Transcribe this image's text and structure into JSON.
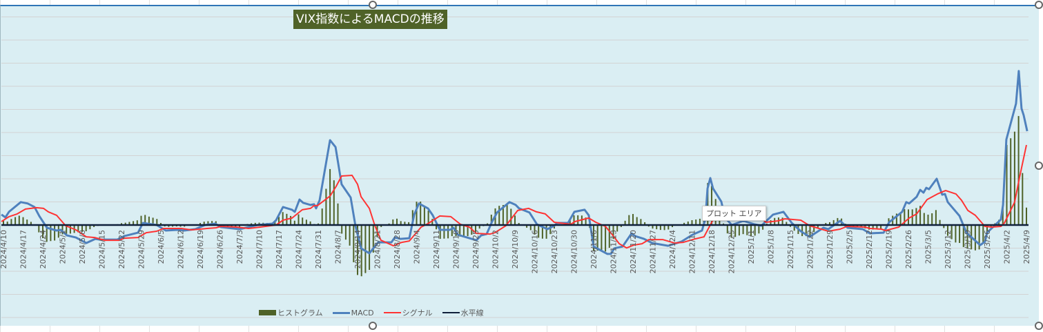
{
  "colors": {
    "histogram": "#4F6228",
    "macd": "#4F81BD",
    "signal": "#FF3333",
    "zero": "#0F1F3A",
    "bg": "#DAEEF3",
    "grid": "#D3D3D3",
    "title_bg": "#4F6228"
  },
  "tooltip": "プロット エリア",
  "chart_data": {
    "type": "bar+line",
    "title": "VIX指数によるMACDの推移",
    "xlabel": "",
    "ylabel": "",
    "x_unit": "weeks since 2024/4/10",
    "y_unit": "gridline units (no y-axis labels shown)",
    "ylim": [
      -4,
      9.5
    ],
    "grid": true,
    "legend_position": "bottom",
    "categories": [
      "2024/4/10",
      "2024/4/17",
      "2024/4/24",
      "2024/5/1",
      "2024/5/8",
      "2024/5/15",
      "2024/5/22",
      "2024/5/29",
      "2024/6/5",
      "2024/6/12",
      "2024/6/19",
      "2024/6/26",
      "2024/7/3",
      "2024/7/10",
      "2024/7/17",
      "2024/7/24",
      "2024/7/31",
      "2024/8/7",
      "2024/8/14",
      "2024/8/21",
      "2024/8/28",
      "2024/9/4",
      "2024/9/11",
      "2024/9/18",
      "2024/9/25",
      "2024/10/2",
      "2024/10/9",
      "2024/10/16",
      "2024/10/23",
      "2024/10/30",
      "2024/11/6",
      "2024/11/13",
      "2024/11/20",
      "2024/11/27",
      "2024/12/4",
      "2024/12/11",
      "2024/12/18",
      "2024/12/25",
      "2025/1/1",
      "2025/1/8",
      "2025/1/15",
      "2025/1/22",
      "2025/1/29",
      "2025/2/5",
      "2025/2/12",
      "2025/2/19",
      "2025/2/26",
      "2025/3/5",
      "2025/3/12",
      "2025/3/19",
      "2025/3/26",
      "2025/4/2",
      "2025/4/9"
    ],
    "legend": [
      "ヒストグラム",
      "MACD",
      "シグナル",
      "水平線"
    ],
    "series": [
      {
        "name": "MACD",
        "points": [
          [
            -0.1,
            0.45
          ],
          [
            0.1,
            0.33
          ],
          [
            0.28,
            0.57
          ],
          [
            0.88,
            0.99
          ],
          [
            1.23,
            0.93
          ],
          [
            1.58,
            0.78
          ],
          [
            1.82,
            0.39
          ],
          [
            2.21,
            -0.12
          ],
          [
            2.7,
            -0.24
          ],
          [
            2.91,
            -0.21
          ],
          [
            3.23,
            -0.45
          ],
          [
            3.68,
            -0.54
          ],
          [
            4.21,
            -0.78
          ],
          [
            4.67,
            -0.6
          ],
          [
            4.91,
            -0.63
          ],
          [
            5.79,
            -0.63
          ],
          [
            6.14,
            -0.48
          ],
          [
            6.84,
            -0.33
          ],
          [
            7.09,
            0.09
          ],
          [
            7.79,
            0
          ],
          [
            8.25,
            -0.24
          ],
          [
            8.84,
            -0.21
          ],
          [
            9.19,
            -0.24
          ],
          [
            9.75,
            -0.18
          ],
          [
            10.25,
            0
          ],
          [
            10.77,
            0.06
          ],
          [
            11.05,
            -0.09
          ],
          [
            12.0,
            -0.18
          ],
          [
            12.91,
            0
          ],
          [
            13.68,
            0.06
          ],
          [
            13.86,
            0.21
          ],
          [
            14.21,
            0.78
          ],
          [
            14.67,
            0.66
          ],
          [
            14.81,
            0.57
          ],
          [
            15.05,
            1.1
          ],
          [
            15.23,
            0.96
          ],
          [
            15.61,
            0.87
          ],
          [
            15.79,
            0.9
          ],
          [
            15.89,
            0.72
          ],
          [
            16.07,
            1.07
          ],
          [
            16.6,
            3.67
          ],
          [
            16.88,
            3.37
          ],
          [
            17.19,
            1.76
          ],
          [
            17.65,
            1.19
          ],
          [
            17.89,
            -0.03
          ],
          [
            18.18,
            -1.01
          ],
          [
            18.6,
            -1.22
          ],
          [
            19.05,
            -0.75
          ],
          [
            19.72,
            -0.75
          ],
          [
            19.89,
            -0.54
          ],
          [
            20.18,
            -0.6
          ],
          [
            20.63,
            -0.57
          ],
          [
            20.88,
            0.45
          ],
          [
            21.12,
            0.93
          ],
          [
            21.58,
            0.72
          ],
          [
            21.82,
            0.42
          ],
          [
            22.18,
            -0.21
          ],
          [
            22.7,
            -0.21
          ],
          [
            22.88,
            -0.12
          ],
          [
            23.09,
            -0.42
          ],
          [
            24.04,
            -0.66
          ],
          [
            24.28,
            -0.45
          ],
          [
            24.56,
            -0.39
          ],
          [
            24.84,
            0.15
          ],
          [
            25.09,
            0.54
          ],
          [
            25.72,
            0.99
          ],
          [
            26.04,
            0.87
          ],
          [
            26.21,
            0.72
          ],
          [
            26.74,
            0.54
          ],
          [
            27.12,
            0.03
          ],
          [
            27.65,
            -0.18
          ],
          [
            28.0,
            -0.03
          ],
          [
            28.14,
            0.09
          ],
          [
            28.7,
            0.09
          ],
          [
            29.02,
            0.57
          ],
          [
            29.54,
            0.66
          ],
          [
            29.75,
            0.42
          ],
          [
            30.0,
            -0.93
          ],
          [
            30.7,
            -1.25
          ],
          [
            30.88,
            -1.25
          ],
          [
            31.05,
            -1.01
          ],
          [
            31.47,
            -0.93
          ],
          [
            31.93,
            -0.36
          ],
          [
            32.11,
            -0.48
          ],
          [
            32.56,
            -0.6
          ],
          [
            32.98,
            -0.78
          ],
          [
            33.79,
            -0.9
          ],
          [
            34.46,
            -0.72
          ],
          [
            35.02,
            -0.42
          ],
          [
            35.51,
            -0.24
          ],
          [
            35.68,
            0.27
          ],
          [
            35.79,
            1.58
          ],
          [
            35.93,
            2.03
          ],
          [
            36.07,
            1.58
          ],
          [
            36.49,
            1.01
          ],
          [
            36.67,
            0.33
          ],
          [
            37.02,
            0
          ],
          [
            37.61,
            0.18
          ],
          [
            38.18,
            0.03
          ],
          [
            38.53,
            -0.03
          ],
          [
            39.12,
            0.45
          ],
          [
            39.65,
            0.57
          ],
          [
            40.07,
            0.09
          ],
          [
            40.53,
            -0.27
          ],
          [
            40.98,
            -0.51
          ],
          [
            41.68,
            -0.12
          ],
          [
            41.93,
            -0.18
          ],
          [
            42.53,
            0.18
          ],
          [
            42.91,
            -0.12
          ],
          [
            43.68,
            -0.18
          ],
          [
            44.04,
            -0.36
          ],
          [
            44.74,
            -0.33
          ],
          [
            45.02,
            0.12
          ],
          [
            45.68,
            0.57
          ],
          [
            45.89,
            0.99
          ],
          [
            46.04,
            0.93
          ],
          [
            46.42,
            1.22
          ],
          [
            46.6,
            1.52
          ],
          [
            46.77,
            1.4
          ],
          [
            46.91,
            1.61
          ],
          [
            47.05,
            1.55
          ],
          [
            47.44,
            2.0
          ],
          [
            47.72,
            1.31
          ],
          [
            47.86,
            1.34
          ],
          [
            48.0,
            0.99
          ],
          [
            48.6,
            0.39
          ],
          [
            48.95,
            -0.33
          ],
          [
            49.65,
            -0.87
          ],
          [
            49.89,
            -0.72
          ],
          [
            50.0,
            -0.33
          ],
          [
            50.7,
            0.24
          ],
          [
            50.81,
            0.87
          ],
          [
            50.98,
            3.7
          ],
          [
            51.47,
            5.25
          ],
          [
            51.61,
            6.66
          ],
          [
            51.75,
            5.04
          ],
          [
            51.86,
            4.75
          ],
          [
            52.04,
            4.06
          ]
        ]
      },
      {
        "name": "シグナル",
        "points": [
          [
            -0.1,
            0.15
          ],
          [
            0.28,
            0.36
          ],
          [
            0.7,
            0.48
          ],
          [
            1.12,
            0.69
          ],
          [
            1.68,
            0.75
          ],
          [
            2.04,
            0.72
          ],
          [
            2.28,
            0.57
          ],
          [
            2.7,
            0.42
          ],
          [
            3.16,
            -0.03
          ],
          [
            3.68,
            -0.21
          ],
          [
            4.21,
            -0.51
          ],
          [
            4.63,
            -0.54
          ],
          [
            5.16,
            -0.66
          ],
          [
            5.89,
            -0.66
          ],
          [
            6.14,
            -0.57
          ],
          [
            6.84,
            -0.54
          ],
          [
            7.26,
            -0.33
          ],
          [
            7.79,
            -0.27
          ],
          [
            8.14,
            -0.15
          ],
          [
            9.05,
            -0.15
          ],
          [
            9.54,
            -0.21
          ],
          [
            10.0,
            -0.18
          ],
          [
            10.35,
            -0.15
          ],
          [
            10.81,
            -0.12
          ],
          [
            11.05,
            -0.06
          ],
          [
            11.86,
            -0.09
          ],
          [
            12.46,
            -0.15
          ],
          [
            13.05,
            -0.09
          ],
          [
            13.86,
            0
          ],
          [
            14.21,
            0.21
          ],
          [
            14.67,
            0.3
          ],
          [
            15.19,
            0.66
          ],
          [
            15.61,
            0.72
          ],
          [
            15.79,
            0.84
          ],
          [
            15.96,
            0.84
          ],
          [
            16.6,
            1.25
          ],
          [
            16.91,
            1.67
          ],
          [
            17.19,
            2.12
          ],
          [
            17.72,
            2.15
          ],
          [
            18.0,
            1.76
          ],
          [
            18.18,
            1.22
          ],
          [
            18.6,
            0.72
          ],
          [
            18.88,
            -0.03
          ],
          [
            19.19,
            -0.66
          ],
          [
            19.82,
            -0.9
          ],
          [
            20.25,
            -0.75
          ],
          [
            20.63,
            -0.69
          ],
          [
            21.23,
            -0.09
          ],
          [
            21.58,
            0.06
          ],
          [
            22.18,
            0.39
          ],
          [
            22.74,
            0.36
          ],
          [
            23.23,
            0.03
          ],
          [
            23.68,
            -0.09
          ],
          [
            24.04,
            -0.36
          ],
          [
            24.74,
            -0.39
          ],
          [
            24.98,
            -0.33
          ],
          [
            25.54,
            -0.03
          ],
          [
            26.14,
            0.63
          ],
          [
            26.7,
            0.72
          ],
          [
            27.09,
            0.57
          ],
          [
            27.54,
            0.48
          ],
          [
            28.0,
            0.12
          ],
          [
            28.84,
            0.03
          ],
          [
            29.05,
            0.15
          ],
          [
            29.75,
            0.3
          ],
          [
            30.11,
            0.12
          ],
          [
            30.6,
            -0.06
          ],
          [
            30.95,
            -0.42
          ],
          [
            31.3,
            -0.81
          ],
          [
            31.68,
            -0.99
          ],
          [
            32.04,
            -0.87
          ],
          [
            32.46,
            -0.81
          ],
          [
            32.81,
            -0.63
          ],
          [
            33.51,
            -0.63
          ],
          [
            34.11,
            -0.78
          ],
          [
            34.56,
            -0.75
          ],
          [
            35.16,
            -0.6
          ],
          [
            35.61,
            -0.51
          ],
          [
            36.04,
            0.18
          ],
          [
            36.67,
            0.57
          ],
          [
            38.07,
            0.57
          ],
          [
            38.77,
            0.12
          ],
          [
            39.37,
            0.18
          ],
          [
            39.72,
            0.27
          ],
          [
            40.53,
            0.21
          ],
          [
            40.98,
            -0.03
          ],
          [
            41.93,
            -0.27
          ],
          [
            42.53,
            -0.18
          ],
          [
            42.88,
            -0.06
          ],
          [
            43.79,
            -0.09
          ],
          [
            44.04,
            -0.15
          ],
          [
            44.63,
            -0.18
          ],
          [
            44.84,
            -0.24
          ],
          [
            45.51,
            -0.09
          ],
          [
            46.04,
            0.3
          ],
          [
            46.42,
            0.48
          ],
          [
            46.95,
            1.1
          ],
          [
            47.47,
            1.34
          ],
          [
            47.89,
            1.49
          ],
          [
            48.42,
            1.34
          ],
          [
            48.7,
            1.07
          ],
          [
            49.02,
            0.63
          ],
          [
            49.4,
            0.42
          ],
          [
            49.89,
            -0.06
          ],
          [
            50.25,
            -0.09
          ],
          [
            50.7,
            -0.06
          ],
          [
            50.88,
            0.09
          ],
          [
            51.4,
            0.99
          ],
          [
            51.65,
            2.06
          ],
          [
            52.0,
            3.46
          ]
        ]
      },
      {
        "name": "水平線",
        "value": 0
      }
    ]
  }
}
